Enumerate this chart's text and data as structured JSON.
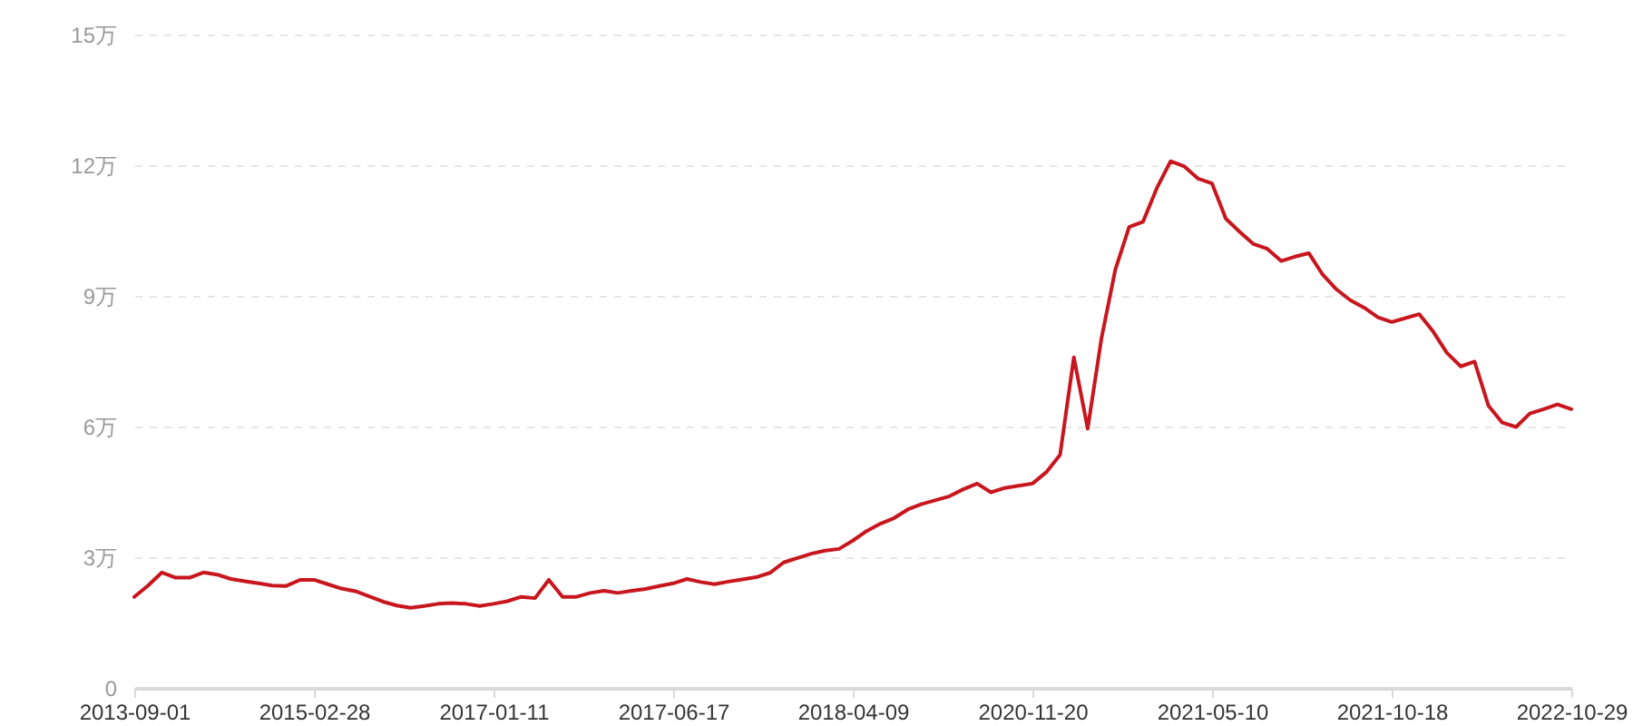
{
  "chart_data": {
    "type": "line",
    "color": "#c8161e",
    "categories": [
      "2013-09-01",
      null,
      null,
      null,
      null,
      null,
      null,
      null,
      null,
      null,
      null,
      null,
      null,
      "2015-02-28",
      null,
      null,
      null,
      null,
      null,
      null,
      null,
      null,
      null,
      null,
      null,
      null,
      "2017-01-11",
      null,
      null,
      null,
      null,
      null,
      null,
      null,
      null,
      null,
      null,
      null,
      null,
      "2017-06-17",
      null,
      null,
      null,
      null,
      null,
      null,
      null,
      null,
      null,
      null,
      null,
      null,
      "2018-04-09",
      null,
      null,
      null,
      null,
      null,
      null,
      null,
      null,
      null,
      null,
      null,
      null,
      "2020-11-20",
      null,
      null,
      null,
      null,
      null,
      null,
      null,
      null,
      null,
      null,
      null,
      null,
      "2021-05-10",
      null,
      null,
      null,
      null,
      null,
      null,
      null,
      null,
      null,
      null,
      null,
      null,
      "2021-10-18",
      null,
      null,
      null,
      null,
      null,
      null,
      null,
      null,
      null,
      null,
      null,
      null,
      "2022-10-29"
    ],
    "values": [
      2.09,
      2.35,
      2.65,
      2.53,
      2.53,
      2.65,
      2.6,
      2.5,
      2.45,
      2.4,
      2.35,
      2.34,
      2.48,
      2.48,
      2.38,
      2.28,
      2.22,
      2.1,
      1.98,
      1.89,
      1.84,
      1.88,
      1.93,
      1.95,
      1.93,
      1.88,
      1.93,
      1.99,
      2.09,
      2.06,
      2.48,
      2.09,
      2.09,
      2.18,
      2.23,
      2.18,
      2.23,
      2.27,
      2.34,
      2.4,
      2.5,
      2.43,
      2.38,
      2.44,
      2.49,
      2.54,
      2.64,
      2.88,
      2.98,
      3.08,
      3.15,
      3.19,
      3.38,
      3.6,
      3.77,
      3.9,
      4.1,
      4.22,
      4.31,
      4.4,
      4.56,
      4.69,
      4.49,
      4.59,
      4.64,
      4.69,
      4.95,
      5.35,
      7.59,
      5.95,
      8.03,
      9.6,
      10.58,
      10.7,
      11.47,
      12.09,
      11.97,
      11.69,
      11.58,
      10.77,
      10.47,
      10.19,
      10.08,
      9.8,
      9.9,
      9.98,
      9.49,
      9.15,
      8.9,
      8.73,
      8.51,
      8.4,
      8.49,
      8.58,
      8.18,
      7.69,
      7.38,
      7.49,
      6.48,
      6.09,
      5.99,
      6.3,
      6.4,
      6.51,
      6.4
    ],
    "ylim": [
      0,
      15
    ],
    "yticks": [
      0,
      {
        "value": 3,
        "label": "3万"
      },
      {
        "value": 6,
        "label": "6万"
      },
      {
        "value": 9,
        "label": "9万"
      },
      {
        "value": 12,
        "label": "12万"
      },
      {
        "value": 15,
        "label": "15万"
      }
    ],
    "grid": "y"
  }
}
